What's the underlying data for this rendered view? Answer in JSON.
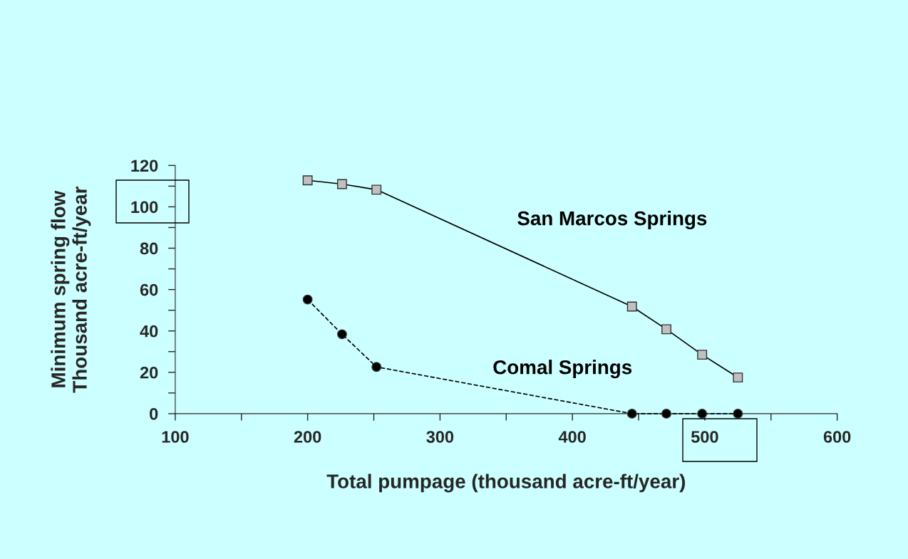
{
  "chart_data": {
    "type": "line",
    "xlabel": "Total pumpage (thousand acre-ft/year)",
    "ylabel": "Minimum spring flow\nThousand acre-ft/year",
    "series": [
      {
        "name": "San Marcos Springs",
        "color": "#000000",
        "marker": "square",
        "line_style": "solid",
        "x": [
          200,
          226,
          252,
          445,
          471,
          498,
          525
        ],
        "values": [
          112.8,
          111,
          108.3,
          51.8,
          40.8,
          28.5,
          17.5
        ]
      },
      {
        "name": "Comal Springs",
        "color": "#000000",
        "marker": "circle",
        "line_style": "dashed",
        "x": [
          200,
          226,
          252,
          445,
          471,
          498,
          525
        ],
        "values": [
          55.2,
          38.4,
          22.6,
          0,
          0,
          0,
          0
        ]
      }
    ],
    "xlim": [
      100,
      600
    ],
    "ylim": [
      0,
      120
    ],
    "xticks": [
      100,
      {
        "value": 150,
        "label": null
      },
      200,
      {
        "value": 250,
        "label": null
      },
      300,
      {
        "value": 350,
        "label": null
      },
      400,
      {
        "value": 450,
        "label": null
      },
      500,
      {
        "value": 550,
        "label": null
      },
      600
    ],
    "yticks": [
      0,
      {
        "value": 10,
        "label": null
      },
      20,
      {
        "value": 30,
        "label": null
      },
      40,
      {
        "value": 50,
        "label": null
      },
      60,
      {
        "value": 70,
        "label": null
      },
      80,
      {
        "value": 90,
        "label": null
      },
      100,
      {
        "value": 110,
        "label": null
      },
      120
    ],
    "grid": false,
    "legend": false
  }
}
